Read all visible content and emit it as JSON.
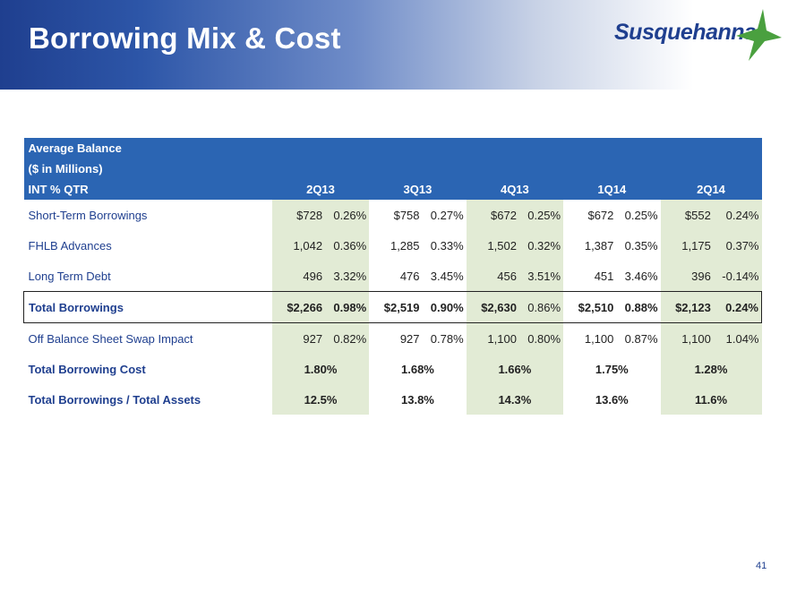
{
  "header": {
    "title": "Borrowing Mix & Cost",
    "logo_text": "Susquehanna",
    "logo_icon": "star-icon",
    "logo_color": "#4aa03f"
  },
  "table": {
    "header_rows": [
      "Average Balance",
      "($ in Millions)"
    ],
    "column_label": "INT % QTR",
    "quarters": [
      "2Q13",
      "3Q13",
      "4Q13",
      "1Q14",
      "2Q14"
    ],
    "rows": [
      {
        "label": "Short-Term Borrowings",
        "cells": [
          [
            "$728",
            "0.26%"
          ],
          [
            "$758",
            "0.27%"
          ],
          [
            "$672",
            "0.25%"
          ],
          [
            "$672",
            "0.25%"
          ],
          [
            "$552",
            "0.24%"
          ]
        ]
      },
      {
        "label": "FHLB Advances",
        "cells": [
          [
            "1,042",
            "0.36%"
          ],
          [
            "1,285",
            "0.33%"
          ],
          [
            "1,502",
            "0.32%"
          ],
          [
            "1,387",
            "0.35%"
          ],
          [
            "1,175",
            "0.37%"
          ]
        ]
      },
      {
        "label": "Long Term Debt",
        "cells": [
          [
            "496",
            "3.32%"
          ],
          [
            "476",
            "3.45%"
          ],
          [
            "456",
            "3.51%"
          ],
          [
            "451",
            "3.46%"
          ],
          [
            "396",
            "-0.14%"
          ]
        ]
      },
      {
        "label": "Total Borrowings",
        "cells": [
          [
            "$2,266",
            "0.98%"
          ],
          [
            "$2,519",
            "0.90%"
          ],
          [
            "$2,630",
            "0.86%"
          ],
          [
            "$2,510",
            "0.88%"
          ],
          [
            "$2,123",
            "0.24%"
          ]
        ]
      },
      {
        "label": "Off Balance Sheet Swap Impact",
        "cells": [
          [
            "927",
            "0.82%"
          ],
          [
            "927",
            "0.78%"
          ],
          [
            "1,100",
            "0.80%"
          ],
          [
            "1,100",
            "0.87%"
          ],
          [
            "1,100",
            "1.04%"
          ]
        ]
      }
    ],
    "summary_rows": [
      {
        "label": "Total Borrowing Cost",
        "values": [
          "1.80%",
          "1.68%",
          "1.66%",
          "1.75%",
          "1.28%"
        ]
      },
      {
        "label": "Total Borrowings / Total Assets",
        "values": [
          "12.5%",
          "13.8%",
          "14.3%",
          "13.6%",
          "11.6%"
        ]
      }
    ]
  },
  "page_number": "41",
  "colors": {
    "header_band": "#2b65b3",
    "shaded_column": "#e2ebd5",
    "label_text": "#1f3f8f"
  }
}
